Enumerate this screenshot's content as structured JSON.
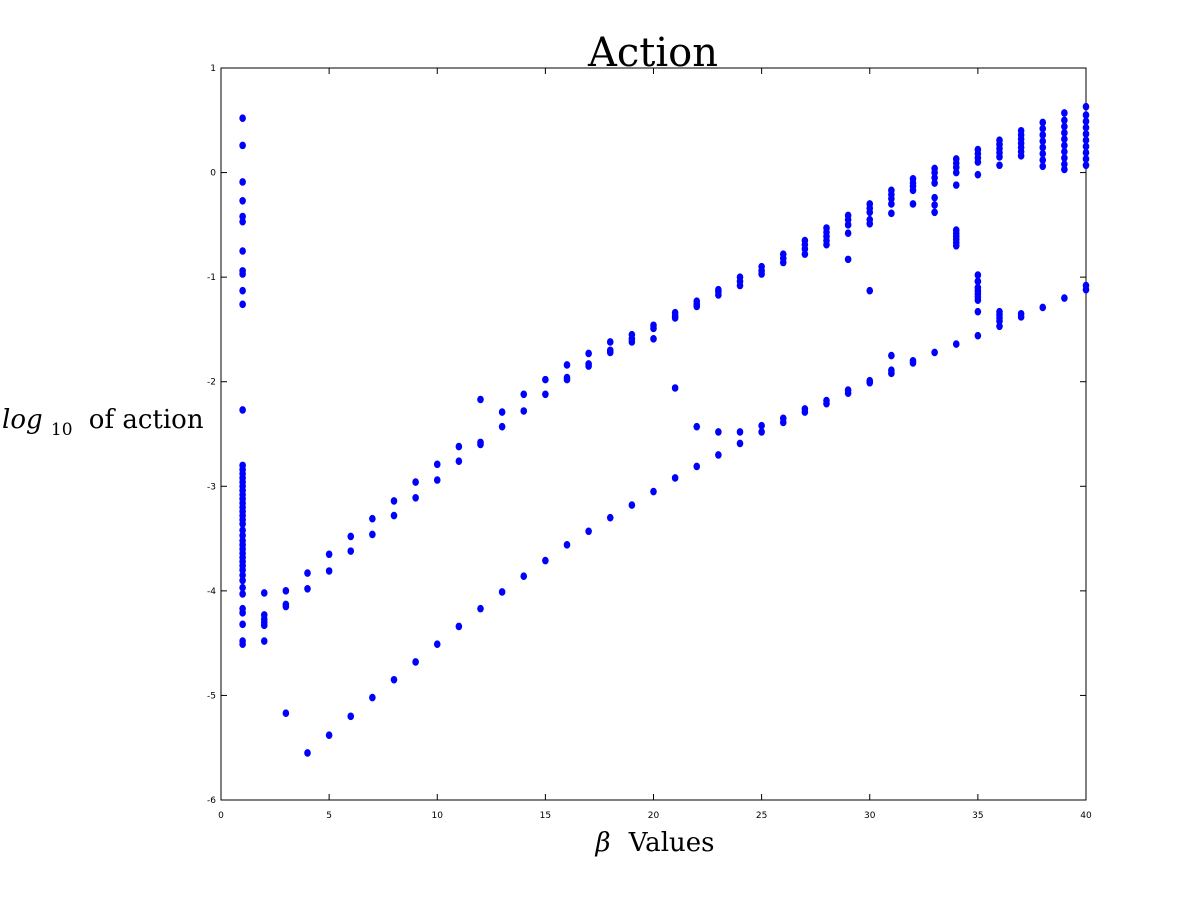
{
  "chart_data": {
    "type": "scatter",
    "title": "Action",
    "xlabel": {
      "symbol": "β",
      "text": "Values"
    },
    "ylabel": {
      "prefix": "log",
      "subscript": "10",
      "text": "of action"
    },
    "xlim": [
      0,
      40
    ],
    "ylim": [
      -6,
      1
    ],
    "xticks": [
      0,
      5,
      10,
      15,
      20,
      25,
      30,
      35,
      40
    ],
    "yticks": [
      -6,
      -5,
      -4,
      -3,
      -2,
      -1,
      0,
      1
    ],
    "grid": false,
    "legend": "none",
    "marker_color": "#0000ff",
    "points": [
      [
        1,
        0.52
      ],
      [
        1,
        0.26
      ],
      [
        1,
        -0.09
      ],
      [
        1,
        -0.27
      ],
      [
        1,
        -0.42
      ],
      [
        1,
        -0.47
      ],
      [
        1,
        -0.75
      ],
      [
        1,
        -0.94
      ],
      [
        1,
        -0.97
      ],
      [
        1,
        -1.13
      ],
      [
        1,
        -1.26
      ],
      [
        1,
        -2.27
      ],
      [
        1,
        -2.8
      ],
      [
        1,
        -2.84
      ],
      [
        1,
        -2.88
      ],
      [
        1,
        -2.92
      ],
      [
        1,
        -2.96
      ],
      [
        1,
        -3.0
      ],
      [
        1,
        -3.04
      ],
      [
        1,
        -3.08
      ],
      [
        1,
        -3.12
      ],
      [
        1,
        -3.16
      ],
      [
        1,
        -3.2
      ],
      [
        1,
        -3.24
      ],
      [
        1,
        -3.28
      ],
      [
        1,
        -3.32
      ],
      [
        1,
        -3.36
      ],
      [
        1,
        -3.42
      ],
      [
        1,
        -3.47
      ],
      [
        1,
        -3.52
      ],
      [
        1,
        -3.56
      ],
      [
        1,
        -3.6
      ],
      [
        1,
        -3.64
      ],
      [
        1,
        -3.68
      ],
      [
        1,
        -3.72
      ],
      [
        1,
        -3.76
      ],
      [
        1,
        -3.8
      ],
      [
        1,
        -3.85
      ],
      [
        1,
        -3.9
      ],
      [
        1,
        -3.97
      ],
      [
        1,
        -4.03
      ],
      [
        1,
        -4.17
      ],
      [
        1,
        -4.21
      ],
      [
        1,
        -4.32
      ],
      [
        1,
        -4.48
      ],
      [
        1,
        -4.51
      ],
      [
        2,
        -4.02
      ],
      [
        2,
        -4.23
      ],
      [
        2,
        -4.27
      ],
      [
        2,
        -4.3
      ],
      [
        2,
        -4.33
      ],
      [
        2,
        -4.48
      ],
      [
        3,
        -4.0
      ],
      [
        3,
        -4.13
      ],
      [
        3,
        -4.15
      ],
      [
        3,
        -5.17
      ],
      [
        4,
        -3.83
      ],
      [
        4,
        -3.98
      ],
      [
        4,
        -5.55
      ],
      [
        5,
        -3.65
      ],
      [
        5,
        -3.81
      ],
      [
        5,
        -5.38
      ],
      [
        6,
        -3.48
      ],
      [
        6,
        -3.62
      ],
      [
        6,
        -5.2
      ],
      [
        7,
        -3.31
      ],
      [
        7,
        -3.46
      ],
      [
        7,
        -5.02
      ],
      [
        8,
        -3.14
      ],
      [
        8,
        -3.28
      ],
      [
        8,
        -4.85
      ],
      [
        9,
        -2.96
      ],
      [
        9,
        -3.11
      ],
      [
        9,
        -4.68
      ],
      [
        10,
        -2.79
      ],
      [
        10,
        -2.94
      ],
      [
        10,
        -4.51
      ],
      [
        11,
        -2.62
      ],
      [
        11,
        -2.76
      ],
      [
        11,
        -4.34
      ],
      [
        12,
        -2.17
      ],
      [
        12,
        -2.58
      ],
      [
        12,
        -2.6
      ],
      [
        12,
        -4.17
      ],
      [
        13,
        -2.29
      ],
      [
        13,
        -2.43
      ],
      [
        13,
        -4.01
      ],
      [
        14,
        -2.12
      ],
      [
        14,
        -2.28
      ],
      [
        14,
        -3.86
      ],
      [
        15,
        -1.98
      ],
      [
        15,
        -2.12
      ],
      [
        15,
        -3.71
      ],
      [
        16,
        -1.84
      ],
      [
        16,
        -1.96
      ],
      [
        16,
        -1.98
      ],
      [
        16,
        -3.56
      ],
      [
        17,
        -1.73
      ],
      [
        17,
        -1.83
      ],
      [
        17,
        -1.85
      ],
      [
        17,
        -3.43
      ],
      [
        18,
        -1.62
      ],
      [
        18,
        -1.7
      ],
      [
        18,
        -1.72
      ],
      [
        18,
        -3.3
      ],
      [
        19,
        -1.55
      ],
      [
        19,
        -1.59
      ],
      [
        19,
        -1.62
      ],
      [
        19,
        -3.18
      ],
      [
        20,
        -1.46
      ],
      [
        20,
        -1.49
      ],
      [
        20,
        -1.59
      ],
      [
        20,
        -3.05
      ],
      [
        21,
        -1.34
      ],
      [
        21,
        -1.37
      ],
      [
        21,
        -1.39
      ],
      [
        21,
        -2.06
      ],
      [
        21,
        -2.92
      ],
      [
        22,
        -1.23
      ],
      [
        22,
        -1.26
      ],
      [
        22,
        -1.28
      ],
      [
        22,
        -2.43
      ],
      [
        22,
        -2.81
      ],
      [
        23,
        -1.12
      ],
      [
        23,
        -1.14
      ],
      [
        23,
        -1.17
      ],
      [
        23,
        -2.48
      ],
      [
        23,
        -2.7
      ],
      [
        24,
        -1.0
      ],
      [
        24,
        -1.04
      ],
      [
        24,
        -1.08
      ],
      [
        24,
        -2.48
      ],
      [
        24,
        -2.59
      ],
      [
        25,
        -0.9
      ],
      [
        25,
        -0.94
      ],
      [
        25,
        -0.97
      ],
      [
        25,
        -2.42
      ],
      [
        25,
        -2.48
      ],
      [
        26,
        -0.78
      ],
      [
        26,
        -0.82
      ],
      [
        26,
        -0.86
      ],
      [
        26,
        -2.35
      ],
      [
        26,
        -2.39
      ],
      [
        27,
        -0.65
      ],
      [
        27,
        -0.69
      ],
      [
        27,
        -0.73
      ],
      [
        27,
        -0.78
      ],
      [
        27,
        -2.26
      ],
      [
        27,
        -2.29
      ],
      [
        28,
        -0.53
      ],
      [
        28,
        -0.57
      ],
      [
        28,
        -0.61
      ],
      [
        28,
        -0.65
      ],
      [
        28,
        -0.69
      ],
      [
        28,
        -2.18
      ],
      [
        28,
        -2.21
      ],
      [
        29,
        -0.41
      ],
      [
        29,
        -0.45
      ],
      [
        29,
        -0.5
      ],
      [
        29,
        -0.58
      ],
      [
        29,
        -0.83
      ],
      [
        29,
        -2.08
      ],
      [
        29,
        -2.11
      ],
      [
        30,
        -0.3
      ],
      [
        30,
        -0.34
      ],
      [
        30,
        -0.38
      ],
      [
        30,
        -0.45
      ],
      [
        30,
        -0.49
      ],
      [
        30,
        -1.13
      ],
      [
        30,
        -1.99
      ],
      [
        30,
        -2.01
      ],
      [
        31,
        -0.17
      ],
      [
        31,
        -0.21
      ],
      [
        31,
        -0.25
      ],
      [
        31,
        -0.3
      ],
      [
        31,
        -0.39
      ],
      [
        31,
        -1.75
      ],
      [
        31,
        -1.89
      ],
      [
        31,
        -1.92
      ],
      [
        32,
        -0.06
      ],
      [
        32,
        -0.1
      ],
      [
        32,
        -0.13
      ],
      [
        32,
        -0.17
      ],
      [
        32,
        -0.3
      ],
      [
        32,
        -1.8
      ],
      [
        32,
        -1.82
      ],
      [
        33,
        0.04
      ],
      [
        33,
        0.0
      ],
      [
        33,
        -0.05
      ],
      [
        33,
        -0.1
      ],
      [
        33,
        -0.24
      ],
      [
        33,
        -0.31
      ],
      [
        33,
        -0.38
      ],
      [
        33,
        -1.72
      ],
      [
        34,
        0.13
      ],
      [
        34,
        0.09
      ],
      [
        34,
        0.05
      ],
      [
        34,
        0.0
      ],
      [
        34,
        -0.12
      ],
      [
        34,
        -0.55
      ],
      [
        34,
        -0.58
      ],
      [
        34,
        -0.61
      ],
      [
        34,
        -0.64
      ],
      [
        34,
        -0.67
      ],
      [
        34,
        -0.7
      ],
      [
        34,
        -1.64
      ],
      [
        35,
        0.22
      ],
      [
        35,
        0.18
      ],
      [
        35,
        0.14
      ],
      [
        35,
        0.1
      ],
      [
        35,
        -0.02
      ],
      [
        35,
        -0.98
      ],
      [
        35,
        -1.04
      ],
      [
        35,
        -1.1
      ],
      [
        35,
        -1.13
      ],
      [
        35,
        -1.16
      ],
      [
        35,
        -1.19
      ],
      [
        35,
        -1.22
      ],
      [
        35,
        -1.33
      ],
      [
        35,
        -1.56
      ],
      [
        36,
        0.31
      ],
      [
        36,
        0.27
      ],
      [
        36,
        0.23
      ],
      [
        36,
        0.19
      ],
      [
        36,
        0.15
      ],
      [
        36,
        0.07
      ],
      [
        36,
        -1.33
      ],
      [
        36,
        -1.36
      ],
      [
        36,
        -1.39
      ],
      [
        36,
        -1.42
      ],
      [
        36,
        -1.47
      ],
      [
        37,
        0.4
      ],
      [
        37,
        0.36
      ],
      [
        37,
        0.32
      ],
      [
        37,
        0.28
      ],
      [
        37,
        0.24
      ],
      [
        37,
        0.2
      ],
      [
        37,
        0.16
      ],
      [
        37,
        -1.35
      ],
      [
        37,
        -1.38
      ],
      [
        38,
        0.48
      ],
      [
        38,
        0.42
      ],
      [
        38,
        0.36
      ],
      [
        38,
        0.3
      ],
      [
        38,
        0.24
      ],
      [
        38,
        0.18
      ],
      [
        38,
        0.12
      ],
      [
        38,
        0.06
      ],
      [
        38,
        -1.29
      ],
      [
        39,
        0.57
      ],
      [
        39,
        0.5
      ],
      [
        39,
        0.44
      ],
      [
        39,
        0.38
      ],
      [
        39,
        0.32
      ],
      [
        39,
        0.26
      ],
      [
        39,
        0.2
      ],
      [
        39,
        0.14
      ],
      [
        39,
        0.08
      ],
      [
        39,
        0.03
      ],
      [
        39,
        -1.2
      ],
      [
        40,
        0.63
      ],
      [
        40,
        0.55
      ],
      [
        40,
        0.49
      ],
      [
        40,
        0.43
      ],
      [
        40,
        0.37
      ],
      [
        40,
        0.31
      ],
      [
        40,
        0.25
      ],
      [
        40,
        0.19
      ],
      [
        40,
        0.13
      ],
      [
        40,
        0.07
      ],
      [
        40,
        -1.08
      ],
      [
        40,
        -1.12
      ]
    ]
  }
}
